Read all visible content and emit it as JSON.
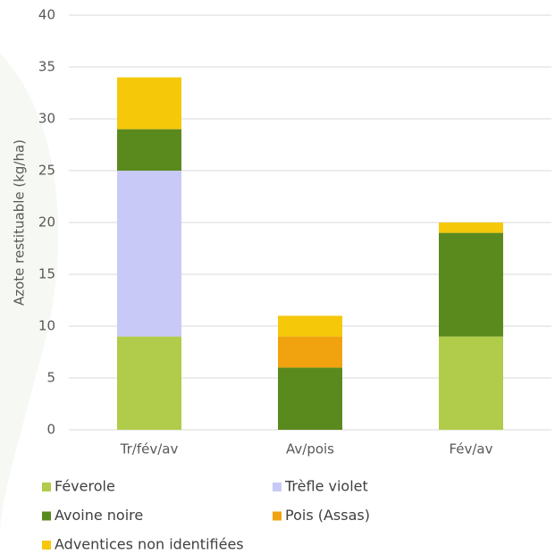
{
  "chart_data": {
    "type": "stacked-bar",
    "y_label": "Azote restituable (kg/ha)",
    "categories": [
      "Tr/fév/av",
      "Av/pois",
      "Fév/av"
    ],
    "series": [
      {
        "name": "Féverole",
        "color": "#b0cc4a",
        "values": [
          9,
          0,
          9
        ]
      },
      {
        "name": "Trèfle violet",
        "color": "#c9c9f7",
        "values": [
          16,
          0,
          0
        ]
      },
      {
        "name": "Avoine noire",
        "color": "#5a8a1e",
        "values": [
          4,
          6,
          10
        ]
      },
      {
        "name": "Pois (Assas)",
        "color": "#f0a30f",
        "values": [
          0,
          3,
          0
        ]
      },
      {
        "name": "Adventices non identifiées",
        "color": "#f5c80a",
        "values": [
          5,
          2,
          1
        ]
      }
    ],
    "ylim": [
      0,
      40
    ],
    "yticks": [
      0,
      5,
      10,
      15,
      20,
      25,
      30,
      35,
      40
    ],
    "grid": true
  }
}
